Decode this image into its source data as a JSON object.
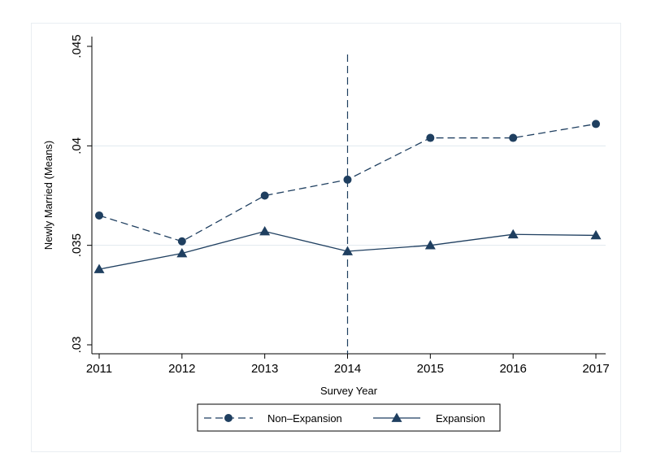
{
  "chart_data": {
    "type": "line",
    "title": "",
    "xlabel": "Survey Year",
    "ylabel": "Newly Married (Means)",
    "x": [
      2011,
      2012,
      2013,
      2014,
      2015,
      2016,
      2017
    ],
    "xticks": [
      "2011",
      "2012",
      "2013",
      "2014",
      "2015",
      "2016",
      "2017"
    ],
    "yticks": [
      {
        "value": 0.03,
        "label": ".03"
      },
      {
        "value": 0.035,
        "label": ".035"
      },
      {
        "value": 0.04,
        "label": ".04"
      },
      {
        "value": 0.045,
        "label": ".045"
      }
    ],
    "ylim": [
      0.03,
      0.045
    ],
    "xlim": [
      2011,
      2017
    ],
    "grid": "horizontal",
    "vertical_reference_line": 2014,
    "legend_position": "bottom",
    "series": [
      {
        "name": "Non–Expansion",
        "values": [
          0.0365,
          0.0352,
          0.0375,
          0.0383,
          0.0404,
          0.0404,
          0.0411
        ],
        "line_style": "dashed",
        "marker": "circle",
        "color": "#1f3f60"
      },
      {
        "name": "Expansion",
        "values": [
          0.0338,
          0.0346,
          0.0357,
          0.0347,
          0.035,
          0.03555,
          0.0355
        ],
        "line_style": "solid",
        "marker": "triangle",
        "color": "#1f3f60"
      }
    ],
    "colors": {
      "axis": "#000000",
      "grid": "#e1e8ee",
      "frame": "#e9eef2"
    }
  }
}
